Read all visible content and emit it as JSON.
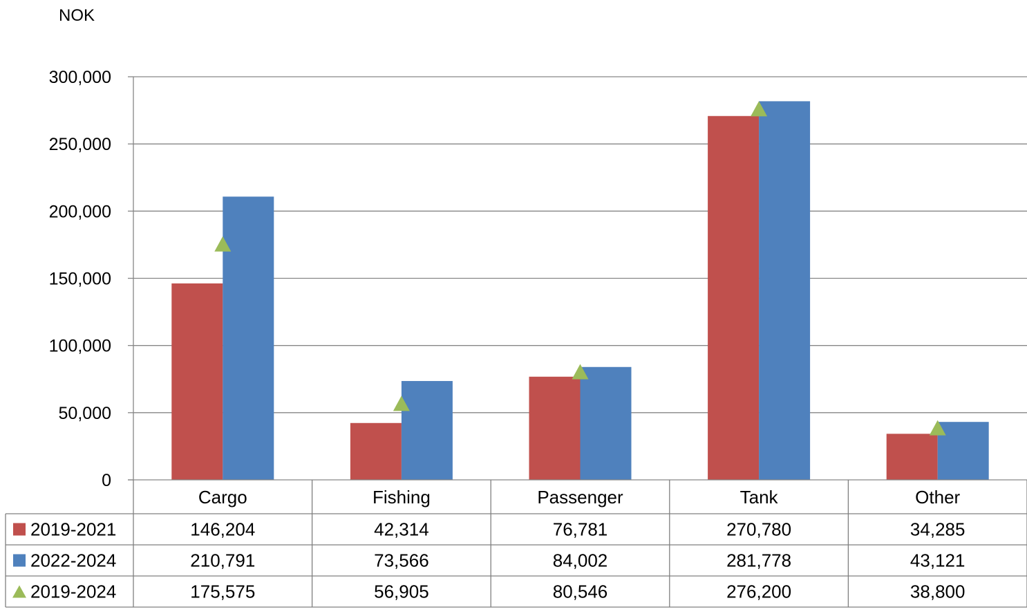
{
  "chart_data": {
    "type": "bar",
    "ylabel": "NOK",
    "ylim": [
      0,
      300000
    ],
    "yticks": [
      0,
      50000,
      100000,
      150000,
      200000,
      250000,
      300000
    ],
    "ytick_labels": [
      "0",
      "50,000",
      "100,000",
      "150,000",
      "200,000",
      "250,000",
      "300,000"
    ],
    "grid": true,
    "categories": [
      "Cargo",
      "Fishing",
      "Passenger",
      "Tank",
      "Other"
    ],
    "series": [
      {
        "name": "2019-2021",
        "mark": "bar",
        "color": "#c0504d",
        "values": [
          146204,
          42314,
          76781,
          270780,
          34285
        ],
        "labels": [
          "146,204",
          "42,314",
          "76,781",
          "270,780",
          "34,285"
        ]
      },
      {
        "name": "2022-2024",
        "mark": "bar",
        "color": "#4f81bd",
        "values": [
          210791,
          73566,
          84002,
          281778,
          43121
        ],
        "labels": [
          "210,791",
          "73,566",
          "84,002",
          "281,778",
          "43,121"
        ]
      },
      {
        "name": "2019-2024",
        "mark": "triangle",
        "color": "#9bbb59",
        "values": [
          175575,
          56905,
          80546,
          276200,
          38800
        ],
        "labels": [
          "175,575",
          "56,905",
          "80,546",
          "276,200",
          "38,800"
        ]
      }
    ],
    "data_table": true
  }
}
